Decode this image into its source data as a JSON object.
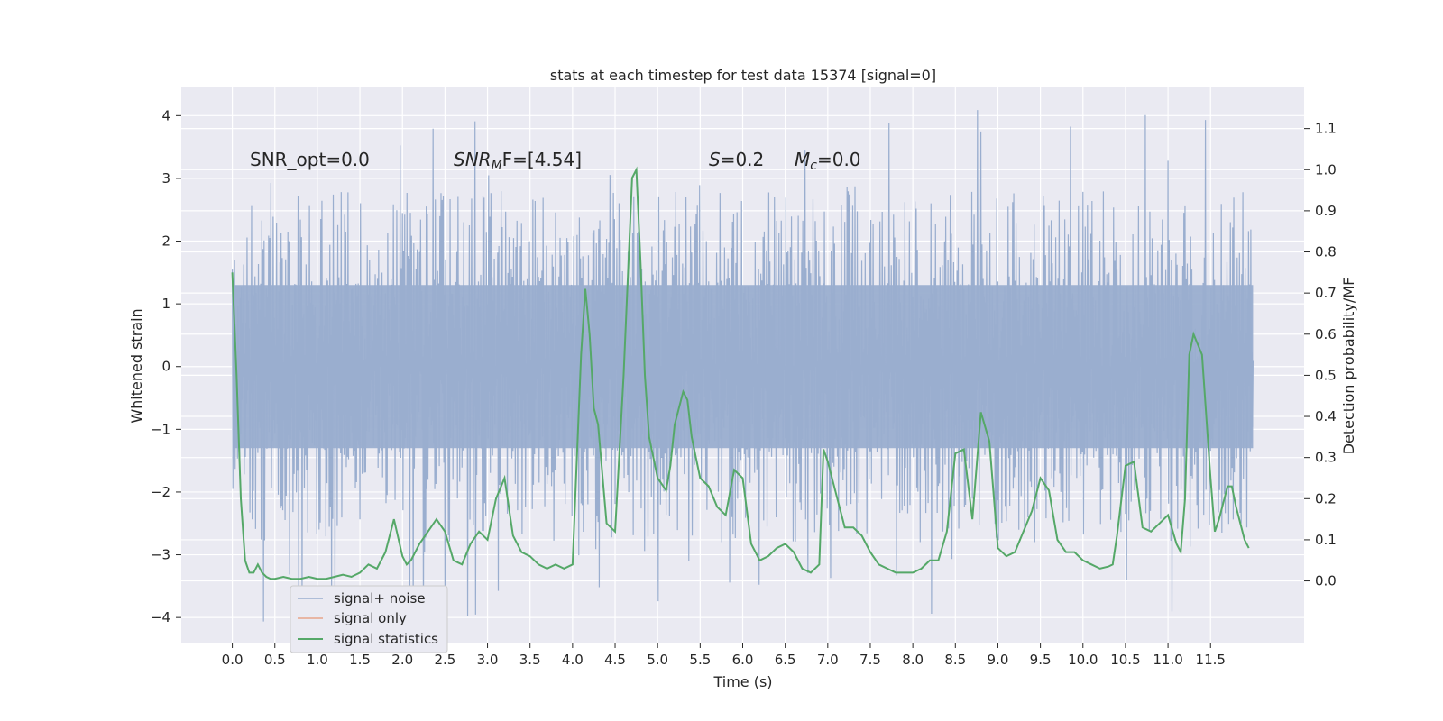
{
  "chart_data": {
    "type": "line",
    "title": "stats at each timestep for test data 15374 [signal=0]",
    "xlabel": "Time (s)",
    "ylabel_left": "Whitened strain",
    "ylabel_right": "Detection probability/MF",
    "xlim": [
      -0.6,
      12.6
    ],
    "ylim_left": [
      -4.4,
      4.45
    ],
    "ylim_right": [
      -0.15,
      1.2
    ],
    "x_ticks": [
      "0.0",
      "0.5",
      "1.0",
      "1.5",
      "2.0",
      "2.5",
      "3.0",
      "3.5",
      "4.0",
      "4.5",
      "5.0",
      "5.5",
      "6.0",
      "6.5",
      "7.0",
      "7.5",
      "8.0",
      "8.5",
      "9.0",
      "9.5",
      "10.0",
      "10.5",
      "11.0",
      "11.5"
    ],
    "y_ticks_left": [
      "−4",
      "−3",
      "−2",
      "−1",
      "0",
      "1",
      "2",
      "3",
      "4"
    ],
    "y_ticks_right": [
      "0.0",
      "0.1",
      "0.2",
      "0.3",
      "0.4",
      "0.5",
      "0.6",
      "0.7",
      "0.8",
      "0.9",
      "1.0",
      "1.1"
    ],
    "grid": true,
    "legend_position": "lower-left",
    "legend": [
      {
        "label": "signal+ noise",
        "color": "#9aaecf"
      },
      {
        "label": "signal only",
        "color": "#e8a58a"
      },
      {
        "label": "signal statistics",
        "color": "#55a868"
      }
    ],
    "annotations": {
      "snr_opt": "SNR_opt=0.0",
      "snr_mf_main": "SNR",
      "snr_mf_sub": "M",
      "snr_mf_rest": "F=[4.54]",
      "s_main": "S",
      "s_rest": "=0.2",
      "mc_main": "M",
      "mc_sub": "c",
      "mc_rest": "=0.0"
    },
    "noise_series": {
      "name": "signal+ noise",
      "x_range": [
        0.0,
        12.0
      ],
      "band": [
        -1.3,
        1.3
      ],
      "typical_range": [
        -2.7,
        2.8
      ],
      "extreme_range": [
        -4.05,
        4.1
      ],
      "color": "#9aaecf"
    },
    "series": [
      {
        "name": "signal statistics",
        "color": "#55a868",
        "x": [
          0.0,
          0.05,
          0.1,
          0.15,
          0.2,
          0.25,
          0.3,
          0.35,
          0.4,
          0.45,
          0.5,
          0.6,
          0.7,
          0.8,
          0.9,
          1.0,
          1.1,
          1.2,
          1.3,
          1.4,
          1.5,
          1.6,
          1.7,
          1.8,
          1.9,
          2.0,
          2.05,
          2.1,
          2.2,
          2.3,
          2.4,
          2.5,
          2.6,
          2.7,
          2.8,
          2.9,
          3.0,
          3.1,
          3.2,
          3.3,
          3.4,
          3.5,
          3.6,
          3.7,
          3.8,
          3.9,
          4.0,
          4.1,
          4.15,
          4.2,
          4.25,
          4.3,
          4.4,
          4.5,
          4.6,
          4.7,
          4.75,
          4.8,
          4.85,
          4.9,
          5.0,
          5.1,
          5.15,
          5.2,
          5.3,
          5.35,
          5.4,
          5.5,
          5.6,
          5.7,
          5.8,
          5.9,
          6.0,
          6.1,
          6.2,
          6.3,
          6.4,
          6.5,
          6.6,
          6.7,
          6.8,
          6.9,
          6.95,
          7.0,
          7.1,
          7.2,
          7.3,
          7.4,
          7.5,
          7.6,
          7.7,
          7.8,
          7.9,
          8.0,
          8.1,
          8.2,
          8.3,
          8.4,
          8.5,
          8.6,
          8.7,
          8.8,
          8.9,
          9.0,
          9.1,
          9.2,
          9.3,
          9.4,
          9.5,
          9.6,
          9.7,
          9.8,
          9.9,
          10.0,
          10.1,
          10.2,
          10.3,
          10.35,
          10.4,
          10.5,
          10.6,
          10.7,
          10.8,
          10.9,
          11.0,
          11.1,
          11.15,
          11.2,
          11.25,
          11.3,
          11.4,
          11.5,
          11.55,
          11.6,
          11.7,
          11.75,
          11.8,
          11.9,
          11.95
        ],
        "y": [
          0.75,
          0.5,
          0.2,
          0.05,
          0.02,
          0.02,
          0.04,
          0.02,
          0.01,
          0.005,
          0.005,
          0.01,
          0.005,
          0.005,
          0.01,
          0.005,
          0.005,
          0.01,
          0.015,
          0.01,
          0.02,
          0.04,
          0.03,
          0.07,
          0.15,
          0.06,
          0.04,
          0.05,
          0.09,
          0.12,
          0.15,
          0.12,
          0.05,
          0.04,
          0.09,
          0.12,
          0.1,
          0.2,
          0.25,
          0.11,
          0.07,
          0.06,
          0.04,
          0.03,
          0.04,
          0.03,
          0.04,
          0.55,
          0.71,
          0.6,
          0.42,
          0.38,
          0.14,
          0.12,
          0.5,
          0.98,
          1.0,
          0.77,
          0.5,
          0.35,
          0.25,
          0.22,
          0.28,
          0.38,
          0.46,
          0.44,
          0.35,
          0.25,
          0.23,
          0.18,
          0.16,
          0.27,
          0.25,
          0.09,
          0.05,
          0.06,
          0.08,
          0.09,
          0.07,
          0.03,
          0.02,
          0.04,
          0.32,
          0.29,
          0.21,
          0.13,
          0.13,
          0.11,
          0.07,
          0.04,
          0.03,
          0.02,
          0.02,
          0.02,
          0.03,
          0.05,
          0.05,
          0.12,
          0.31,
          0.32,
          0.15,
          0.41,
          0.34,
          0.08,
          0.06,
          0.07,
          0.12,
          0.17,
          0.25,
          0.22,
          0.1,
          0.07,
          0.07,
          0.05,
          0.04,
          0.03,
          0.035,
          0.04,
          0.11,
          0.28,
          0.29,
          0.13,
          0.12,
          0.14,
          0.16,
          0.09,
          0.07,
          0.2,
          0.55,
          0.6,
          0.55,
          0.25,
          0.12,
          0.15,
          0.23,
          0.23,
          0.18,
          0.1,
          0.08
        ]
      }
    ]
  }
}
